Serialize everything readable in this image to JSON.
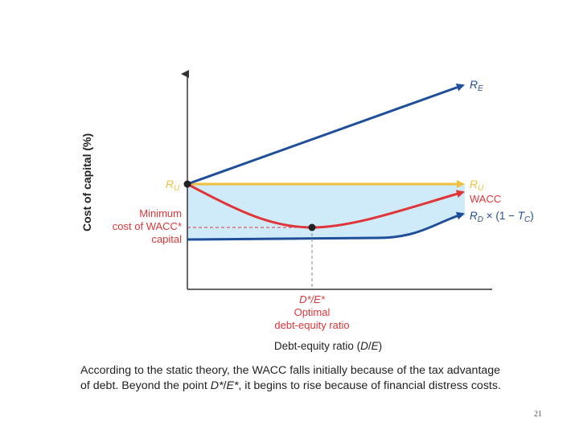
{
  "axes": {
    "ylabel": "Cost of capital (%)",
    "xlabel": "Debt-equity ratio (D/E)"
  },
  "labels": {
    "re": "RE",
    "ru_right": "RU",
    "ru_left": "RU",
    "wacc": "WACC",
    "rd_after_tax": "RD × (1 − TC)",
    "min_wacc": [
      "Minimum",
      "cost of WACC*",
      "capital"
    ],
    "optimal": [
      "D*/E*",
      "Optimal",
      "debt-equity ratio"
    ]
  },
  "caption": {
    "line1": "According to the static theory, the WACC falls initially because of the tax advantage",
    "line2": "of debt. Beyond the point D*/E*, it begins to rise because of financial distress costs."
  },
  "page_number": "21",
  "colors": {
    "re_line": "#1f4e9a",
    "ru_line": "#f0c040",
    "wacc_line": "#e0363a",
    "rd_line": "#1f4e9a",
    "shade": "#cfeaf8",
    "axis": "#333333",
    "red_text": "#e0363a"
  }
}
